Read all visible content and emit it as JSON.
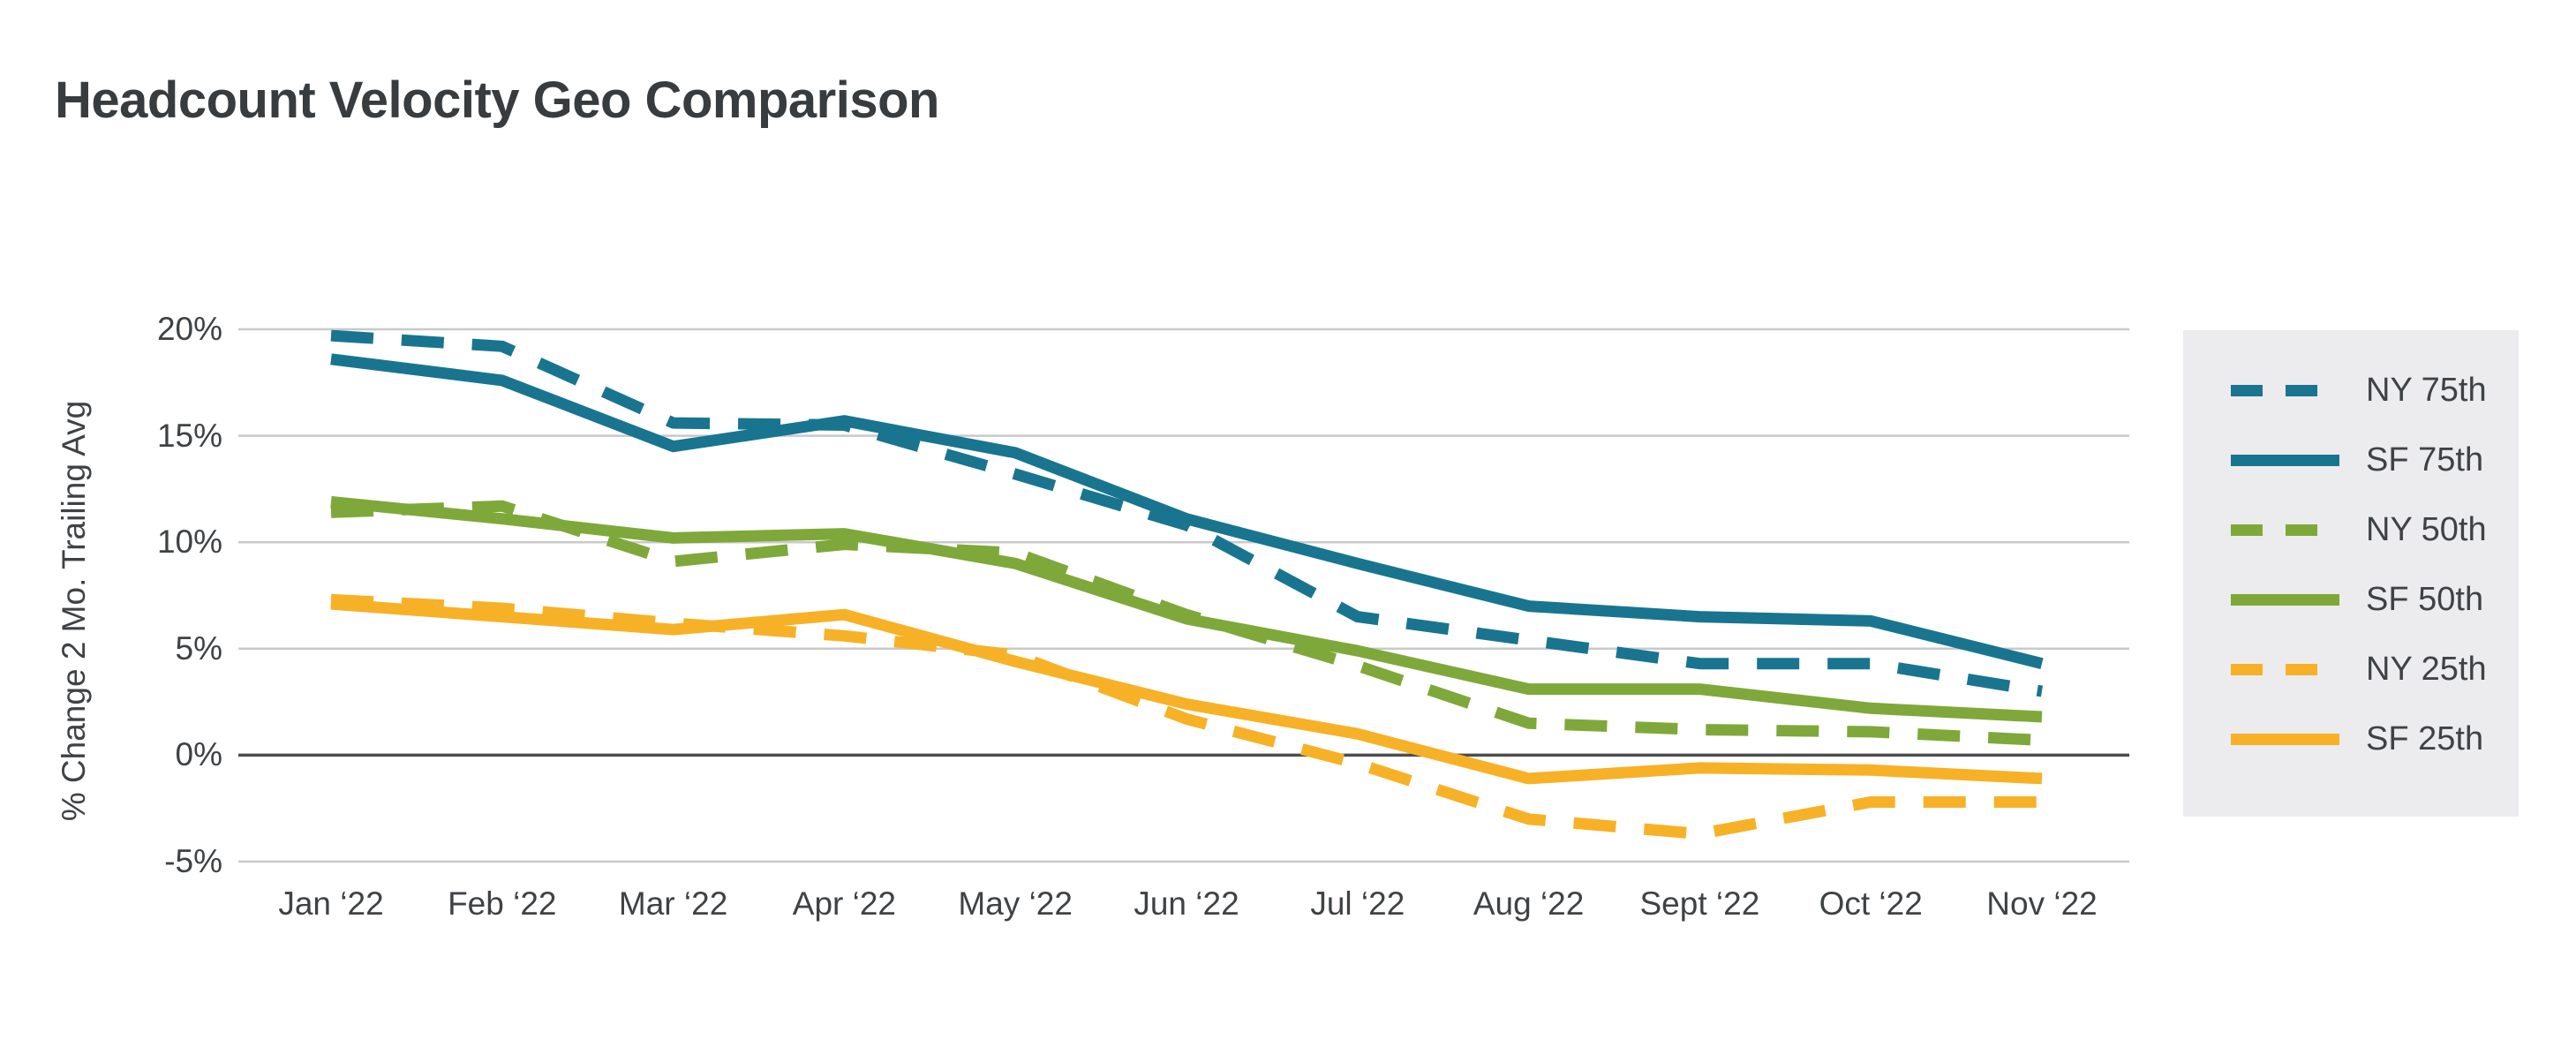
{
  "chart_data": {
    "type": "line",
    "title": "Headcount Velocity Geo Comparison",
    "ylabel": "% Change 2 Mo. Trailing Avg",
    "xlabel": "",
    "grid": true,
    "legend_position": "right",
    "ylim": [
      -6.5,
      21.5
    ],
    "categories": [
      "Jan ‘22",
      "Feb ‘22",
      "Mar ‘22",
      "Apr ‘22",
      "May ‘22",
      "Jun ‘22",
      "Jul ‘22",
      "Aug ‘22",
      "Sept ‘22",
      "Oct ‘22",
      "Nov ‘22"
    ],
    "y_ticks": [
      {
        "label": "20%",
        "value": 20
      },
      {
        "label": "15%",
        "value": 15
      },
      {
        "label": "10%",
        "value": 10
      },
      {
        "label": "5%",
        "value": 5
      },
      {
        "label": "0%",
        "value": 0
      },
      {
        "label": "-5%",
        "value": -5
      }
    ],
    "series": [
      {
        "name": "NY 75th",
        "color": "#19758f",
        "dash": true,
        "values": [
          19.7,
          19.2,
          15.6,
          15.5,
          13.2,
          10.8,
          6.5,
          5.4,
          4.3,
          4.3,
          3.0
        ]
      },
      {
        "name": "SF 75th",
        "color": "#19758f",
        "dash": false,
        "values": [
          18.6,
          17.6,
          14.5,
          15.7,
          14.2,
          11.1,
          9.0,
          7.0,
          6.5,
          6.3,
          4.3
        ]
      },
      {
        "name": "NY 50th",
        "color": "#7fa83a",
        "dash": true,
        "values": [
          11.4,
          11.7,
          9.1,
          9.9,
          9.5,
          6.6,
          4.2,
          1.5,
          1.2,
          1.1,
          0.7
        ]
      },
      {
        "name": "SF 50th",
        "color": "#7fa83a",
        "dash": false,
        "values": [
          11.9,
          11.1,
          10.2,
          10.4,
          9.0,
          6.4,
          4.9,
          3.1,
          3.1,
          2.2,
          1.8
        ]
      },
      {
        "name": "NY 25th",
        "color": "#f7b127",
        "dash": true,
        "values": [
          7.3,
          6.9,
          6.2,
          5.6,
          4.7,
          1.7,
          -0.4,
          -3.0,
          -3.7,
          -2.2,
          -2.2
        ]
      },
      {
        "name": "SF 25th",
        "color": "#f7b127",
        "dash": false,
        "values": [
          7.1,
          6.5,
          5.9,
          6.6,
          4.4,
          2.4,
          1.0,
          -1.1,
          -0.6,
          -0.7,
          -1.1
        ]
      }
    ],
    "colors": {
      "teal": "#19758f",
      "green": "#7fa83a",
      "yellow": "#f7b127",
      "gridline": "#c9c9c9",
      "zero_line": "#4d4d4d",
      "text": "#3f4245",
      "legend_bg": "#ececee"
    }
  }
}
